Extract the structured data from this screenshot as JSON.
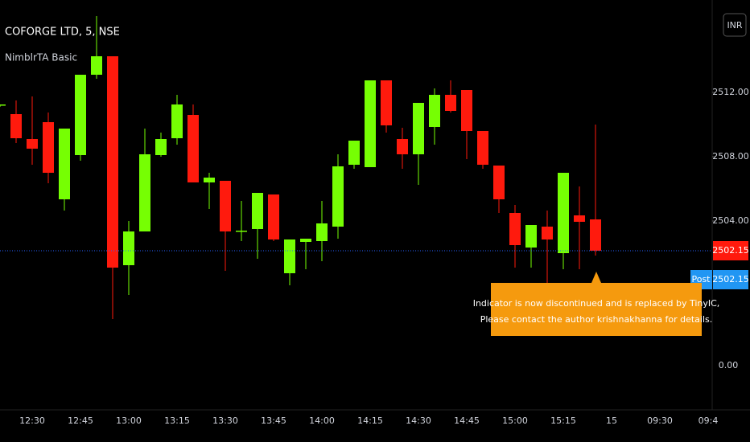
{
  "chart_data": {
    "type": "candlestick",
    "title": "COFORGE LTD, 5, NSE",
    "subtitle": "NimblrTA Basic",
    "currency": "INR",
    "categories": [
      null,
      null,
      "12:30",
      null,
      null,
      "12:45",
      null,
      null,
      "13:00",
      null,
      null,
      "13:15",
      null,
      null,
      "13:30",
      null,
      null,
      "13:45",
      null,
      null,
      "14:00",
      null,
      null,
      "14:15",
      null,
      null,
      "14:30",
      null,
      null,
      "14:45",
      null,
      null,
      "15:00",
      null,
      null,
      "15:15",
      null,
      null
    ],
    "future_categories": [
      "15",
      "09:30",
      "09:4"
    ],
    "open": [
      2511.2,
      2510.65,
      2509.1,
      2510.15,
      2505.35,
      2508.1,
      2513.1,
      2514.25,
      2501.25,
      2503.35,
      2508.1,
      2509.15,
      2510.6,
      2506.4,
      2506.5,
      2503.35,
      2503.5,
      2505.65,
      2500.75,
      2502.7,
      2502.75,
      2503.65,
      2507.5,
      2507.35,
      2512.75,
      2509.1,
      2508.15,
      2509.85,
      2511.85,
      2512.15,
      2509.6,
      2507.45,
      2504.5,
      2502.35,
      2503.65,
      2502.0,
      2504.35,
      2504.1
    ],
    "high": [
      2511.25,
      2511.5,
      2511.75,
      2510.75,
      2509.75,
      2513.1,
      2516.75,
      2514.25,
      2504.0,
      2509.75,
      2509.5,
      2511.85,
      2511.25,
      2507.0,
      2506.5,
      2505.25,
      2505.75,
      2505.65,
      2502.85,
      2502.9,
      2505.25,
      2508.15,
      2509.0,
      2512.75,
      2512.75,
      2509.8,
      2511.35,
      2512.25,
      2512.75,
      2512.15,
      2509.6,
      2507.45,
      2505.0,
      2503.75,
      2504.65,
      2507.0,
      2506.15,
      2510.0
    ],
    "low": [
      2511.1,
      2508.85,
      2507.5,
      2506.35,
      2504.65,
      2507.75,
      2512.85,
      2497.9,
      2499.4,
      2503.35,
      2508.0,
      2508.75,
      2506.4,
      2504.75,
      2500.9,
      2502.75,
      2501.65,
      2502.75,
      2500.0,
      2501.0,
      2501.5,
      2502.9,
      2507.25,
      2507.35,
      2509.5,
      2507.25,
      2506.25,
      2508.75,
      2510.75,
      2507.85,
      2507.25,
      2504.5,
      2501.1,
      2501.1,
      2500.0,
      2501.0,
      2501.0,
      2501.85
    ],
    "close": [
      2511.25,
      2509.15,
      2508.5,
      2507.0,
      2509.75,
      2513.1,
      2514.25,
      2501.1,
      2503.35,
      2508.15,
      2509.1,
      2511.25,
      2506.4,
      2506.7,
      2503.35,
      2503.4,
      2505.75,
      2502.85,
      2502.85,
      2502.9,
      2503.85,
      2507.4,
      2509.0,
      2512.75,
      2509.95,
      2508.15,
      2511.35,
      2511.85,
      2510.85,
      2509.6,
      2507.5,
      2505.35,
      2502.5,
      2503.75,
      2502.85,
      2507.0,
      2503.95,
      2502.15
    ],
    "up_color": "#76ff03",
    "down_color": "#ff1a0d",
    "ylim": [
      2492,
      2517.75
    ],
    "yticks": [
      {
        "value": 2504,
        "label": "2504.00"
      },
      {
        "value": 2508,
        "label": "2508.00"
      },
      {
        "value": 2512,
        "label": "2512.00"
      }
    ],
    "secondary_scale_label": "0.00",
    "last_price": 2502.15,
    "post_label": "Post",
    "post_price": 2502.15,
    "annotation": [
      "Indicator is now discontinued and is replaced by TinyIC,",
      "Please contact the author krishnakhanna for details."
    ]
  }
}
